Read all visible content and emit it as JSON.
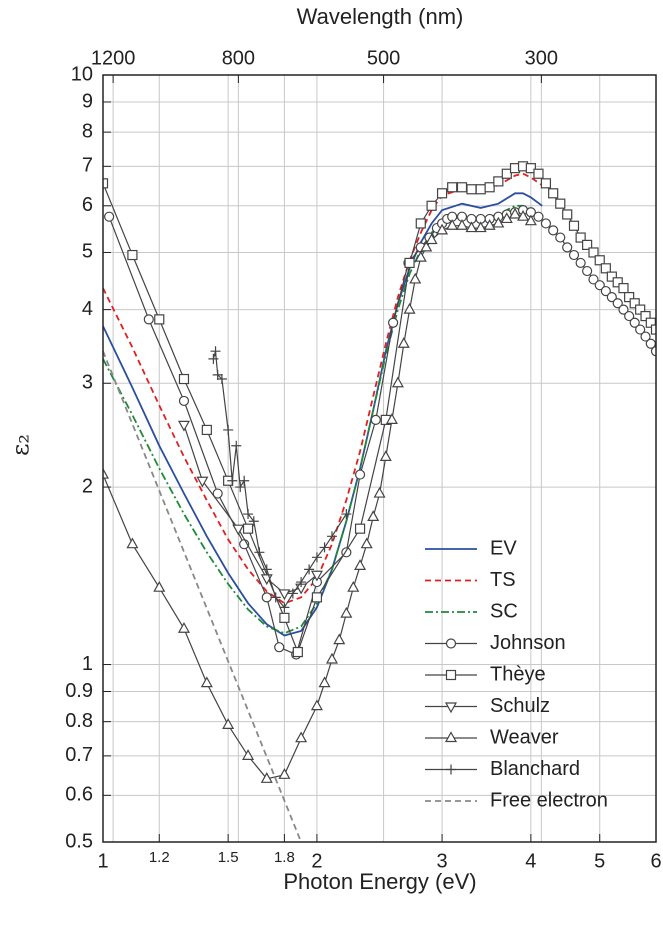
{
  "chart_data": {
    "type": "line",
    "xlabel": "Photon Energy (eV)",
    "ylabel": "ε₂",
    "x2label": "Wavelength (nm)",
    "xscale": "log",
    "yscale": "log",
    "grid": true,
    "xlim": [
      1,
      6
    ],
    "ylim": [
      0.5,
      10
    ],
    "x2lim": [
      1240,
      207
    ],
    "xticks": [
      1,
      1.2,
      1.5,
      1.8,
      2,
      3,
      4,
      5,
      6
    ],
    "yticks": [
      0.5,
      0.6,
      0.7,
      0.8,
      0.9,
      1,
      2,
      3,
      4,
      5,
      6,
      7,
      8,
      9,
      10
    ],
    "x2ticks": [
      1200,
      800,
      500,
      300
    ],
    "series": [
      {
        "name": "EV",
        "color": "#2c4ea0",
        "dash": "solid",
        "marker": null,
        "x": [
          1,
          1.1,
          1.2,
          1.3,
          1.4,
          1.5,
          1.6,
          1.7,
          1.8,
          1.9,
          2.0,
          2.1,
          2.2,
          2.3,
          2.4,
          2.5,
          2.6,
          2.7,
          2.8,
          2.9,
          3.0,
          3.2,
          3.4,
          3.6,
          3.8,
          3.9,
          4.0,
          4.15
        ],
        "values": [
          3.75,
          2.95,
          2.35,
          1.95,
          1.65,
          1.43,
          1.27,
          1.17,
          1.12,
          1.14,
          1.25,
          1.45,
          1.75,
          2.15,
          2.7,
          3.4,
          4.1,
          4.7,
          5.2,
          5.6,
          5.9,
          6.05,
          5.95,
          6.05,
          6.3,
          6.3,
          6.2,
          6.0
        ]
      },
      {
        "name": "TS",
        "color": "#e02020",
        "dash": "dash",
        "marker": null,
        "x": [
          1,
          1.1,
          1.2,
          1.3,
          1.4,
          1.5,
          1.6,
          1.7,
          1.8,
          1.9,
          2.0,
          2.1,
          2.2,
          2.3,
          2.4,
          2.5,
          2.6,
          2.7,
          2.8,
          2.9,
          3.0,
          3.2,
          3.4,
          3.6,
          3.8,
          3.9,
          4.0,
          4.15
        ],
        "values": [
          4.35,
          3.45,
          2.75,
          2.25,
          1.9,
          1.63,
          1.45,
          1.33,
          1.27,
          1.3,
          1.4,
          1.6,
          1.9,
          2.3,
          2.85,
          3.5,
          4.2,
          4.85,
          5.4,
          5.9,
          6.25,
          6.4,
          6.35,
          6.5,
          6.75,
          6.8,
          6.7,
          6.5
        ]
      },
      {
        "name": "SC",
        "color": "#1e8a3a",
        "dash": "dashdot",
        "marker": null,
        "x": [
          1,
          1.1,
          1.2,
          1.3,
          1.4,
          1.5,
          1.6,
          1.7,
          1.8,
          1.9,
          2.0,
          2.1,
          2.2,
          2.3,
          2.4,
          2.5,
          2.6,
          2.7,
          2.8,
          2.9,
          3.0,
          3.2,
          3.4,
          3.6,
          3.8,
          3.9,
          4.0,
          4.15
        ],
        "values": [
          3.3,
          2.65,
          2.15,
          1.8,
          1.55,
          1.37,
          1.24,
          1.16,
          1.13,
          1.16,
          1.27,
          1.45,
          1.75,
          2.15,
          2.7,
          3.35,
          4.0,
          4.6,
          5.05,
          5.4,
          5.65,
          5.75,
          5.7,
          5.8,
          6.0,
          6.0,
          5.9,
          5.75
        ]
      },
      {
        "name": "Johnson",
        "color": "#444444",
        "dash": "solid",
        "marker": "circle",
        "x": [
          1.02,
          1.16,
          1.3,
          1.45,
          1.58,
          1.7,
          1.77,
          1.87,
          2.0,
          2.2,
          2.3,
          2.42,
          2.56,
          2.69,
          2.8,
          2.88,
          2.95,
          3.0,
          3.05,
          3.1,
          3.2,
          3.3,
          3.4,
          3.5,
          3.6,
          3.7,
          3.8,
          3.9,
          4.0,
          4.1,
          4.2,
          4.3,
          4.4,
          4.5,
          4.6,
          4.7,
          4.8,
          4.9,
          5.0,
          5.1,
          5.2,
          5.3,
          5.4,
          5.5,
          5.6,
          5.7,
          5.8,
          5.9,
          6.0
        ],
        "values": [
          5.75,
          3.85,
          2.8,
          1.95,
          1.6,
          1.3,
          1.07,
          1.04,
          1.38,
          1.55,
          2.1,
          2.6,
          3.8,
          4.8,
          5.1,
          5.3,
          5.5,
          5.6,
          5.7,
          5.75,
          5.75,
          5.7,
          5.7,
          5.7,
          5.75,
          5.8,
          5.85,
          5.9,
          5.85,
          5.75,
          5.6,
          5.45,
          5.3,
          5.1,
          4.95,
          4.8,
          4.65,
          4.5,
          4.4,
          4.3,
          4.2,
          4.1,
          4.0,
          3.9,
          3.8,
          3.7,
          3.6,
          3.5,
          3.4
        ]
      },
      {
        "name": "Thèye",
        "color": "#444444",
        "dash": "solid",
        "marker": "square",
        "x": [
          1.0,
          1.1,
          1.2,
          1.3,
          1.4,
          1.5,
          1.6,
          1.8,
          1.88,
          2.0,
          2.3,
          2.5,
          2.7,
          2.8,
          2.9,
          3.0,
          3.1,
          3.2,
          3.3,
          3.4,
          3.5,
          3.6,
          3.7,
          3.8,
          3.9,
          4.0,
          4.1,
          4.2,
          4.3,
          4.4,
          4.5,
          4.6,
          4.7,
          4.8,
          4.9,
          5.0,
          5.1,
          5.2,
          5.3,
          5.4,
          5.5,
          5.6,
          5.7,
          5.8,
          5.9,
          6.0
        ],
        "values": [
          6.55,
          4.95,
          3.85,
          3.05,
          2.5,
          2.05,
          1.7,
          1.2,
          1.05,
          1.3,
          1.7,
          2.6,
          4.8,
          5.6,
          6.0,
          6.3,
          6.45,
          6.45,
          6.4,
          6.4,
          6.45,
          6.6,
          6.8,
          6.95,
          7.0,
          6.95,
          6.8,
          6.55,
          6.3,
          6.05,
          5.8,
          5.55,
          5.3,
          5.15,
          5.0,
          4.85,
          4.7,
          4.55,
          4.45,
          4.35,
          4.2,
          4.1,
          4.0,
          3.9,
          3.8,
          3.7
        ]
      },
      {
        "name": "Schulz",
        "color": "#444444",
        "dash": "solid",
        "marker": "triangle-down",
        "x": [
          1.3,
          1.38,
          1.55,
          1.7,
          1.8,
          1.9,
          2.0
        ],
        "values": [
          2.55,
          2.05,
          1.7,
          1.4,
          1.32,
          1.35,
          1.42
        ]
      },
      {
        "name": "Weaver",
        "color": "#444444",
        "dash": "solid",
        "marker": "triangle",
        "x": [
          1.0,
          1.1,
          1.2,
          1.3,
          1.4,
          1.5,
          1.6,
          1.7,
          1.8,
          1.9,
          2.0,
          2.05,
          2.1,
          2.15,
          2.2,
          2.25,
          2.3,
          2.35,
          2.4,
          2.45,
          2.5,
          2.55,
          2.6,
          2.65,
          2.7,
          2.75,
          2.8,
          2.85,
          2.9,
          3.0,
          3.1,
          3.2,
          3.3,
          3.4,
          3.5,
          3.6,
          3.7,
          3.8,
          3.9,
          4.0
        ],
        "values": [
          2.1,
          1.6,
          1.35,
          1.15,
          0.93,
          0.79,
          0.7,
          0.64,
          0.65,
          0.75,
          0.85,
          0.93,
          1.02,
          1.1,
          1.22,
          1.35,
          1.47,
          1.6,
          1.78,
          1.95,
          2.25,
          2.6,
          3.0,
          3.5,
          4.0,
          4.5,
          4.9,
          5.1,
          5.25,
          5.45,
          5.55,
          5.55,
          5.5,
          5.5,
          5.55,
          5.6,
          5.7,
          5.8,
          5.75,
          5.65
        ]
      },
      {
        "name": "Blanchard",
        "color": "#444444",
        "dash": "solid",
        "marker": "plus",
        "x": [
          1.43,
          1.44,
          1.45,
          1.47,
          1.5,
          1.52,
          1.54,
          1.56,
          1.58,
          1.6,
          1.63,
          1.66,
          1.7,
          1.75,
          1.8,
          1.85,
          1.9,
          1.95,
          2.0,
          2.05,
          2.1,
          2.2
        ],
        "values": [
          3.3,
          3.4,
          3.1,
          3.05,
          2.5,
          2.05,
          2.35,
          2.0,
          2.05,
          1.8,
          1.75,
          1.55,
          1.45,
          1.3,
          1.25,
          1.32,
          1.38,
          1.45,
          1.52,
          1.58,
          1.65,
          1.8
        ]
      },
      {
        "name": "Free electron",
        "color": "#888888",
        "dash": "dash",
        "marker": null,
        "x": [
          1,
          1.9
        ],
        "values": [
          3.4,
          0.5
        ]
      }
    ]
  }
}
